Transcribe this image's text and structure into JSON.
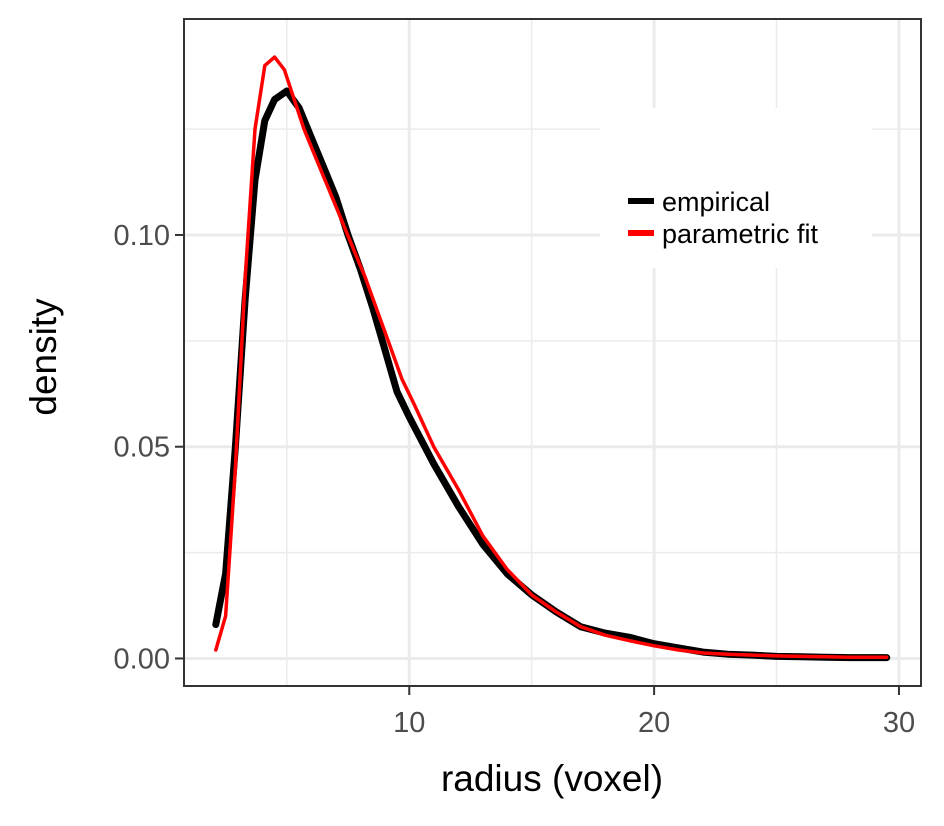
{
  "chart_data": {
    "type": "line",
    "title": "",
    "xlabel": "radius (voxel)",
    "ylabel": "density",
    "xlim": [
      0.8,
      30.9
    ],
    "ylim": [
      -0.0065,
      0.151
    ],
    "xticks": [
      10,
      20,
      30
    ],
    "xtick_labels": [
      "10",
      "20",
      "30"
    ],
    "yticks": [
      0.0,
      0.05,
      0.1
    ],
    "ytick_labels": [
      "0.00",
      "0.05",
      "0.10"
    ],
    "grid": true,
    "legend_position": "top-right",
    "series": [
      {
        "name": "empirical",
        "color": "#000000",
        "x": [
          2.1,
          2.5,
          2.9,
          3.3,
          3.7,
          4.1,
          4.5,
          5.0,
          5.5,
          6.0,
          6.5,
          7.0,
          7.5,
          8.0,
          8.5,
          9.0,
          9.5,
          10.0,
          11.0,
          12.0,
          13.0,
          14.0,
          15.0,
          16.0,
          17.0,
          18.0,
          19.0,
          20.0,
          21.0,
          22.0,
          23.0,
          24.0,
          25.0,
          26.0,
          27.0,
          28.0,
          29.5
        ],
        "y": [
          0.008,
          0.02,
          0.05,
          0.085,
          0.113,
          0.127,
          0.132,
          0.134,
          0.13,
          0.123,
          0.116,
          0.109,
          0.1,
          0.092,
          0.083,
          0.073,
          0.063,
          0.057,
          0.046,
          0.036,
          0.027,
          0.02,
          0.015,
          0.011,
          0.0075,
          0.006,
          0.005,
          0.0035,
          0.0025,
          0.0015,
          0.001,
          0.0008,
          0.0005,
          0.0004,
          0.0003,
          0.0002,
          0.0002
        ]
      },
      {
        "name": "parametric fit",
        "color": "#ff0000",
        "x": [
          2.1,
          2.5,
          2.9,
          3.3,
          3.7,
          4.1,
          4.5,
          4.9,
          5.3,
          5.7,
          6.2,
          6.7,
          7.2,
          7.7,
          8.2,
          8.7,
          9.2,
          9.7,
          10.2,
          11.0,
          12.0,
          13.0,
          14.0,
          15.0,
          16.0,
          17.0,
          18.0,
          19.0,
          20.0,
          21.0,
          22.0,
          23.0,
          24.0,
          25.0,
          26.0,
          27.0,
          28.0,
          29.5
        ],
        "y": [
          0.002,
          0.01,
          0.045,
          0.09,
          0.125,
          0.14,
          0.142,
          0.139,
          0.132,
          0.125,
          0.118,
          0.111,
          0.104,
          0.097,
          0.09,
          0.082,
          0.074,
          0.066,
          0.06,
          0.05,
          0.04,
          0.029,
          0.021,
          0.015,
          0.011,
          0.0075,
          0.0055,
          0.0042,
          0.003,
          0.002,
          0.0013,
          0.001,
          0.0008,
          0.0006,
          0.0005,
          0.0004,
          0.0003,
          0.0003
        ]
      }
    ]
  }
}
